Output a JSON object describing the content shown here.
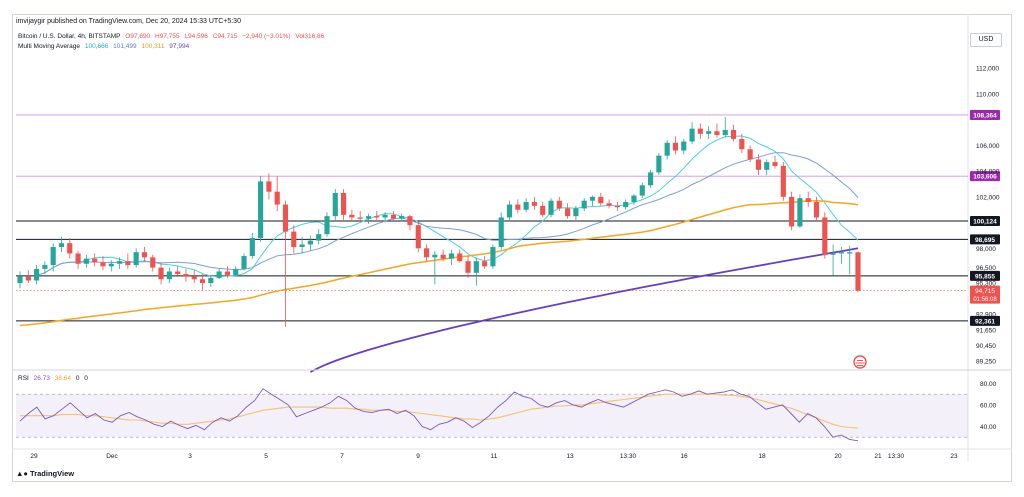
{
  "publisher": "imvijaygir published on TradingView.com, Dec 20, 2024 15:33 UTC+5:30",
  "legend": {
    "symbol": "Bitcoin / U.S. Dollar, 4h, BITSTAMP",
    "o": "O97,690",
    "h": "H97,755",
    "l": "L94,596",
    "c": "C94,715",
    "change": "−2,940 (−3.01%)",
    "vol": "Vol316.86",
    "ma_label": "Multi Moving Average",
    "ma_values": [
      "100,666",
      "101,499",
      "100,311",
      "97,994"
    ]
  },
  "currency_button": "USD",
  "rsi_legend": {
    "label": "RSI",
    "value": "26.73",
    "ma": "38.64",
    "z1": "0",
    "z2": "0"
  },
  "brand": "TradingView",
  "colors": {
    "up": "#26a69a",
    "down": "#ef5350",
    "ma_fast": "#4dd0e1",
    "ma_mid": "#7e9edc",
    "ma_slow": "#f5a623",
    "ma_200": "#6a3fbf",
    "rsi_line": "#7e57c2",
    "rsi_ma": "#f5c26b",
    "pink_level": "#d48ce8",
    "last_price_bg": "#ef5350"
  },
  "chart_data": {
    "type": "candlestick",
    "timeframe": "4h",
    "ylim": [
      88700,
      113100
    ],
    "y_ticks": [
      "112,000",
      "110,000",
      "106,000",
      "104,000",
      "102,000",
      "98,000",
      "96,500",
      "95,300",
      "92,900",
      "91,650",
      "90,450",
      "89,250"
    ],
    "x_ticks": [
      "29",
      "Dec",
      "3",
      "5",
      "7",
      "9",
      "11",
      "13",
      "13:30",
      "16",
      "18",
      "20",
      "21",
      "13:30",
      "23"
    ],
    "horizontal_levels": [
      {
        "price": 108364,
        "label": "108,364",
        "color": "#d48ce8",
        "label_style": "purple"
      },
      {
        "price": 103606,
        "label": "103,606",
        "color": "#d48ce8",
        "label_style": "purple"
      },
      {
        "price": 100124,
        "label": "100,124",
        "color": "#131722",
        "label_style": "black"
      },
      {
        "price": 98695,
        "label": "98,695",
        "color": "#131722",
        "label_style": "black"
      },
      {
        "price": 95855,
        "label": "95,855",
        "color": "#131722",
        "label_style": "black"
      },
      {
        "price": 92361,
        "label": "92,361",
        "color": "#131722",
        "label_style": "black"
      }
    ],
    "last_price": {
      "price": 94715,
      "label": "94,715",
      "countdown": "01:56:08"
    },
    "candles": [
      [
        95300,
        96200,
        94900,
        95800
      ],
      [
        95800,
        96300,
        95300,
        95500
      ],
      [
        95500,
        96700,
        95200,
        96400
      ],
      [
        96400,
        97000,
        96000,
        96700
      ],
      [
        96700,
        98400,
        96200,
        98100
      ],
      [
        98100,
        98900,
        97700,
        98400
      ],
      [
        98400,
        98800,
        97200,
        97600
      ],
      [
        97600,
        97800,
        96400,
        96800
      ],
      [
        96800,
        97500,
        96500,
        97200
      ],
      [
        97200,
        97600,
        96600,
        96900
      ],
      [
        96900,
        97400,
        96300,
        96600
      ],
      [
        96600,
        97100,
        96200,
        96800
      ],
      [
        96800,
        97300,
        96400,
        97000
      ],
      [
        97000,
        97600,
        96400,
        96700
      ],
      [
        96700,
        98000,
        96500,
        97700
      ],
      [
        97700,
        98100,
        97000,
        97300
      ],
      [
        97300,
        97500,
        96200,
        96500
      ],
      [
        96500,
        96900,
        95200,
        95600
      ],
      [
        95600,
        96500,
        95300,
        96200
      ],
      [
        96200,
        96600,
        95900,
        96000
      ],
      [
        96000,
        96400,
        95400,
        95800
      ],
      [
        95800,
        96300,
        95300,
        95600
      ],
      [
        95600,
        96000,
        94700,
        95300
      ],
      [
        95300,
        95900,
        95000,
        95700
      ],
      [
        95700,
        96400,
        95600,
        96200
      ],
      [
        96200,
        96600,
        95700,
        95900
      ],
      [
        95900,
        96600,
        95800,
        96400
      ],
      [
        96400,
        97600,
        96300,
        97400
      ],
      [
        97400,
        99200,
        97200,
        98800
      ],
      [
        98800,
        103600,
        98500,
        103200
      ],
      [
        103200,
        103800,
        101800,
        102400
      ],
      [
        102400,
        103600,
        100900,
        101400
      ],
      [
        101400,
        101700,
        91900,
        99300
      ],
      [
        99300,
        99800,
        97600,
        98100
      ],
      [
        98100,
        98900,
        97600,
        98300
      ],
      [
        98300,
        99000,
        97800,
        98600
      ],
      [
        98600,
        99500,
        98300,
        99100
      ],
      [
        99100,
        100800,
        98900,
        100500
      ],
      [
        100500,
        102600,
        100200,
        102300
      ],
      [
        102300,
        102600,
        100200,
        100600
      ],
      [
        100600,
        101000,
        100200,
        100400
      ],
      [
        100400,
        100900,
        100000,
        100300
      ],
      [
        100300,
        100700,
        99900,
        100500
      ],
      [
        100500,
        100900,
        100100,
        100400
      ],
      [
        100400,
        100800,
        100000,
        100600
      ],
      [
        100600,
        100900,
        100200,
        100300
      ],
      [
        100300,
        100700,
        100100,
        100500
      ],
      [
        100500,
        100600,
        99400,
        99800
      ],
      [
        99800,
        100100,
        97700,
        98000
      ],
      [
        98000,
        98300,
        97000,
        97300
      ],
      [
        97300,
        97800,
        95200,
        97500
      ],
      [
        97500,
        97900,
        97000,
        97200
      ],
      [
        97200,
        97900,
        96700,
        97600
      ],
      [
        97600,
        97900,
        96900,
        97000
      ],
      [
        97000,
        97400,
        95700,
        96100
      ],
      [
        96100,
        97300,
        95100,
        97000
      ],
      [
        97000,
        97400,
        96400,
        96600
      ],
      [
        96600,
        98300,
        96400,
        98100
      ],
      [
        98100,
        100800,
        97900,
        100400
      ],
      [
        100400,
        101700,
        100100,
        101400
      ],
      [
        101400,
        101800,
        100700,
        101000
      ],
      [
        101000,
        101900,
        100800,
        101600
      ],
      [
        101600,
        102000,
        101000,
        101300
      ],
      [
        101300,
        101600,
        100400,
        100600
      ],
      [
        100600,
        101900,
        100400,
        101700
      ],
      [
        101700,
        102000,
        100900,
        101100
      ],
      [
        101100,
        101500,
        100300,
        100500
      ],
      [
        100500,
        101300,
        100200,
        101100
      ],
      [
        101100,
        101900,
        100900,
        101700
      ],
      [
        101700,
        102100,
        101300,
        102000
      ],
      [
        102000,
        102300,
        101300,
        101500
      ],
      [
        101500,
        101800,
        101100,
        101300
      ],
      [
        101300,
        101600,
        100900,
        101200
      ],
      [
        101200,
        101800,
        101000,
        101600
      ],
      [
        101600,
        102200,
        101400,
        102100
      ],
      [
        102100,
        103100,
        101900,
        102900
      ],
      [
        102900,
        104100,
        102700,
        103900
      ],
      [
        103900,
        105400,
        103700,
        105200
      ],
      [
        105200,
        106400,
        104900,
        106200
      ],
      [
        106200,
        106700,
        105300,
        105600
      ],
      [
        105600,
        106500,
        105300,
        106300
      ],
      [
        106300,
        107800,
        106100,
        107300
      ],
      [
        107300,
        107700,
        106500,
        106900
      ],
      [
        106900,
        107500,
        106500,
        107100
      ],
      [
        107100,
        107700,
        106600,
        106800
      ],
      [
        106800,
        108200,
        106600,
        107200
      ],
      [
        107200,
        107600,
        106300,
        106500
      ],
      [
        106500,
        106900,
        105400,
        105700
      ],
      [
        105700,
        106000,
        104700,
        104900
      ],
      [
        104900,
        105300,
        103700,
        104100
      ],
      [
        104100,
        104900,
        103700,
        104700
      ],
      [
        104700,
        105200,
        104200,
        104400
      ],
      [
        104400,
        104700,
        101700,
        102000
      ],
      [
        102000,
        102400,
        99400,
        99700
      ],
      [
        99700,
        102200,
        99600,
        101900
      ],
      [
        101900,
        102400,
        101200,
        101600
      ],
      [
        101600,
        102000,
        100100,
        100400
      ],
      [
        100400,
        100800,
        97200,
        97500
      ],
      [
        97500,
        98300,
        95900,
        97600
      ],
      [
        97600,
        98100,
        96800,
        97700
      ],
      [
        97600,
        98200,
        96000,
        97700
      ],
      [
        97690,
        97755,
        94596,
        94715
      ]
    ],
    "moving_averages": [
      {
        "name": "MA fast",
        "color": "#4dd0e1"
      },
      {
        "name": "MA mid",
        "color": "#7e9edc"
      },
      {
        "name": "MA slow",
        "color": "#f5a623"
      },
      {
        "name": "MA 200",
        "color": "#6a3fbf"
      }
    ],
    "rsi": {
      "ylim": [
        20,
        85
      ],
      "levels": [
        80,
        60,
        40
      ],
      "band": [
        70,
        30
      ],
      "values": [
        45,
        52,
        58,
        47,
        50,
        56,
        62,
        55,
        48,
        52,
        46,
        44,
        50,
        53,
        49,
        46,
        42,
        40,
        45,
        41,
        38,
        41,
        37,
        44,
        48,
        45,
        50,
        58,
        64,
        75,
        70,
        65,
        60,
        49,
        52,
        55,
        58,
        62,
        68,
        64,
        57,
        54,
        53,
        55,
        56,
        52,
        55,
        50,
        40,
        37,
        42,
        44,
        48,
        45,
        39,
        44,
        50,
        58,
        64,
        72,
        68,
        66,
        60,
        58,
        62,
        64,
        60,
        58,
        62,
        65,
        62,
        60,
        58,
        62,
        66,
        70,
        72,
        74,
        72,
        68,
        70,
        73,
        70,
        71,
        72,
        74,
        70,
        68,
        62,
        56,
        58,
        60,
        52,
        44,
        52,
        48,
        40,
        30,
        32,
        28,
        26.73
      ],
      "ma_values": [
        50,
        50,
        50,
        50,
        50,
        51,
        51,
        51,
        50,
        50,
        49,
        48,
        47,
        46,
        46,
        45,
        44,
        43,
        43,
        42,
        42,
        43,
        44,
        45,
        46,
        47,
        49,
        51,
        53,
        55,
        56,
        57,
        58,
        58,
        58,
        58,
        58,
        57,
        57,
        57,
        56,
        56,
        55,
        55,
        55,
        54,
        54,
        53,
        52,
        51,
        50,
        49,
        48,
        47,
        47,
        46,
        47,
        48,
        50,
        52,
        54,
        56,
        57,
        58,
        59,
        59,
        60,
        60,
        61,
        62,
        63,
        64,
        65,
        66,
        67,
        68,
        69,
        70,
        70,
        70,
        70,
        70,
        70,
        70,
        69,
        69,
        68,
        67,
        65,
        63,
        61,
        59,
        57,
        54,
        51,
        48,
        45,
        42,
        40,
        39,
        38.64
      ]
    }
  }
}
